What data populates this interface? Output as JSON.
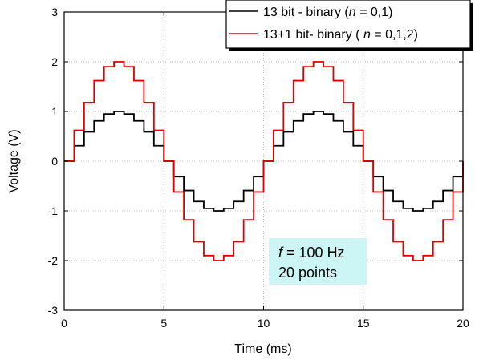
{
  "chart_data": {
    "type": "line",
    "title": "",
    "xlabel": "Time (ms)",
    "ylabel": "Voltage (V)",
    "xlim": [
      0,
      20
    ],
    "ylim": [
      -3,
      3
    ],
    "xticks": [
      0,
      5,
      10,
      15,
      20
    ],
    "yticks": [
      -3,
      -2,
      -1,
      0,
      1,
      2,
      3
    ],
    "grid": true,
    "legend_position": "top-right",
    "step_plot": true,
    "sample_interval_ms": 0.5,
    "series": [
      {
        "name": "13 bit - binary (n = 0,1)",
        "legend_parts": [
          "13 bit  - binary (",
          "n",
          " = 0,1)"
        ],
        "color": "#000000",
        "x": [
          0,
          0.5,
          1,
          1.5,
          2,
          2.5,
          3,
          3.5,
          4,
          4.5,
          5,
          5.5,
          6,
          6.5,
          7,
          7.5,
          8,
          8.5,
          9,
          9.5,
          10,
          10.5,
          11,
          11.5,
          12,
          12.5,
          13,
          13.5,
          14,
          14.5,
          15,
          15.5,
          16,
          16.5,
          17,
          17.5,
          18,
          18.5,
          19,
          19.5
        ],
        "y": [
          0,
          0.31,
          0.59,
          0.81,
          0.95,
          1.0,
          0.95,
          0.81,
          0.59,
          0.31,
          0,
          -0.31,
          -0.59,
          -0.81,
          -0.95,
          -1.0,
          -0.95,
          -0.81,
          -0.59,
          -0.31,
          0,
          0.31,
          0.59,
          0.81,
          0.95,
          1.0,
          0.95,
          0.81,
          0.59,
          0.31,
          0,
          -0.31,
          -0.59,
          -0.81,
          -0.95,
          -1.0,
          -0.95,
          -0.81,
          -0.59,
          -0.31
        ]
      },
      {
        "name": "13+1 bit- binary (n = 0,1,2)",
        "legend_parts": [
          "13+1 bit- binary ( ",
          "n",
          " = 0,1,2)"
        ],
        "color": "#e00000",
        "x": [
          0,
          0.5,
          1,
          1.5,
          2,
          2.5,
          3,
          3.5,
          4,
          4.5,
          5,
          5.5,
          6,
          6.5,
          7,
          7.5,
          8,
          8.5,
          9,
          9.5,
          10,
          10.5,
          11,
          11.5,
          12,
          12.5,
          13,
          13.5,
          14,
          14.5,
          15,
          15.5,
          16,
          16.5,
          17,
          17.5,
          18,
          18.5,
          19,
          19.5
        ],
        "y": [
          0,
          0.62,
          1.18,
          1.62,
          1.9,
          2.0,
          1.9,
          1.62,
          1.18,
          0.62,
          0,
          -0.62,
          -1.18,
          -1.62,
          -1.9,
          -2.0,
          -1.9,
          -1.62,
          -1.18,
          -0.62,
          0,
          0.62,
          1.18,
          1.62,
          1.9,
          2.0,
          1.9,
          1.62,
          1.18,
          0.62,
          0,
          -0.62,
          -1.18,
          -1.62,
          -1.9,
          -2.0,
          -1.9,
          -1.62,
          -1.18,
          -0.62
        ]
      }
    ],
    "annotation": {
      "line1_italic": "f",
      "line1_rest": " = 100 Hz",
      "line2": "20 points",
      "background": "#ccf5f5"
    }
  }
}
